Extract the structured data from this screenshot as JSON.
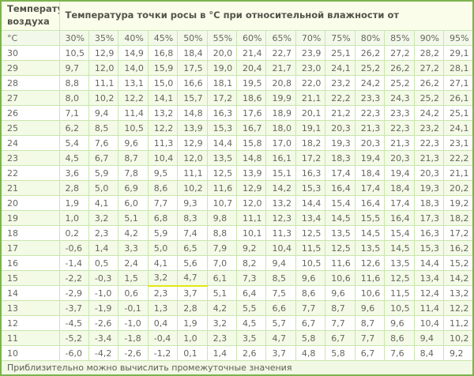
{
  "table": {
    "corner_header": "Температура воздуха",
    "main_header": "Температура точки росы в °C при относительной влажности от",
    "unit_header": "°C",
    "humidity_columns": [
      "30%",
      "35%",
      "40%",
      "45%",
      "50%",
      "55%",
      "60%",
      "65%",
      "70%",
      "75%",
      "80%",
      "85%",
      "90%",
      "95%"
    ],
    "rows": [
      {
        "temp": "30",
        "values": [
          "10,5",
          "12,9",
          "14,9",
          "16,8",
          "18,4",
          "20,0",
          "21,4",
          "22,7",
          "23,9",
          "25,1",
          "26,2",
          "27,2",
          "28,2",
          "29,1"
        ]
      },
      {
        "temp": "29",
        "values": [
          "9,7",
          "12,0",
          "14,0",
          "15,9",
          "17,5",
          "19,0",
          "20,4",
          "21,7",
          "23,0",
          "24,1",
          "25,2",
          "26,2",
          "27,2",
          "28,1"
        ]
      },
      {
        "temp": "28",
        "values": [
          "8,8",
          "11,1",
          "13,1",
          "15,0",
          "16,6",
          "18,1",
          "19,5",
          "20,8",
          "22,0",
          "23,2",
          "24,2",
          "25,2",
          "26,2",
          "27,1"
        ]
      },
      {
        "temp": "27",
        "values": [
          "8,0",
          "10,2",
          "12,2",
          "14,1",
          "15,7",
          "17,2",
          "18,6",
          "19,9",
          "21,1",
          "22,2",
          "23,3",
          "24,3",
          "25,2",
          "26,1"
        ]
      },
      {
        "temp": "26",
        "values": [
          "7,1",
          "9,4",
          "11,4",
          "13,2",
          "14,8",
          "16,3",
          "17,6",
          "18,9",
          "20,1",
          "21,2",
          "22,3",
          "23,3",
          "24,2",
          "25,1"
        ]
      },
      {
        "temp": "25",
        "values": [
          "6,2",
          "8,5",
          "10,5",
          "12,2",
          "13,9",
          "15,3",
          "16,7",
          "18,0",
          "19,1",
          "20,3",
          "21,3",
          "22,3",
          "23,2",
          "24,1"
        ]
      },
      {
        "temp": "24",
        "values": [
          "5,4",
          "7,6",
          "9,6",
          "11,3",
          "12,9",
          "14,4",
          "15,8",
          "17,0",
          "18,2",
          "19,3",
          "20,3",
          "21,3",
          "22,3",
          "23,1"
        ]
      },
      {
        "temp": "23",
        "values": [
          "4,5",
          "6,7",
          "8,7",
          "10,4",
          "12,0",
          "13,5",
          "14,8",
          "16,1",
          "17,2",
          "18,3",
          "19,4",
          "20,3",
          "21,3",
          "22,2"
        ]
      },
      {
        "temp": "22",
        "values": [
          "3,6",
          "5,9",
          "7,8",
          "9,5",
          "11,1",
          "12,5",
          "13,9",
          "15,1",
          "16,3",
          "17,4",
          "18,4",
          "19,4",
          "20,3",
          "21,1"
        ]
      },
      {
        "temp": "21",
        "values": [
          "2,8",
          "5,0",
          "6,9",
          "8,6",
          "10,2",
          "11,6",
          "12,9",
          "14,2",
          "15,3",
          "16,4",
          "17,4",
          "18,4",
          "19,3",
          "20,2"
        ]
      },
      {
        "temp": "20",
        "values": [
          "1,9",
          "4,1",
          "6,0",
          "7,7",
          "9,3",
          "10,7",
          "12,0",
          "13,2",
          "14,4",
          "15,4",
          "16,4",
          "17,4",
          "18,3",
          "19,2"
        ]
      },
      {
        "temp": "19",
        "values": [
          "1,0",
          "3,2",
          "5,1",
          "6,8",
          "8,3",
          "9,8",
          "11,1",
          "12,3",
          "13,4",
          "14,5",
          "15,5",
          "16,4",
          "17,3",
          "18,2"
        ]
      },
      {
        "temp": "18",
        "values": [
          "0,2",
          "2,3",
          "4,2",
          "5,9",
          "7,4",
          "8,8",
          "10,1",
          "11,3",
          "12,5",
          "13,5",
          "14,5",
          "15,4",
          "16,3",
          "17,2"
        ]
      },
      {
        "temp": "17",
        "values": [
          "-0,6",
          "1,4",
          "3,3",
          "5,0",
          "6,5",
          "7,9",
          "9,2",
          "10,4",
          "11,5",
          "12,5",
          "13,5",
          "14,5",
          "15,3",
          "16,2"
        ]
      },
      {
        "temp": "16",
        "values": [
          "-1,4",
          "0,5",
          "2,4",
          "4,1",
          "5,6",
          "7,0",
          "8,2",
          "9,4",
          "10,5",
          "11,6",
          "12,6",
          "13,5",
          "14,4",
          "15,2"
        ]
      },
      {
        "temp": "15",
        "values": [
          "-2,2",
          "-0,3",
          "1,5",
          "3,2",
          "4,7",
          "6,1",
          "7,3",
          "8,5",
          "9,6",
          "10,6",
          "11,6",
          "12,5",
          "13,4",
          "14,2"
        ]
      },
      {
        "temp": "14",
        "values": [
          "-2,9",
          "-1,0",
          "0,6",
          "2,3",
          "3,7",
          "5,1",
          "6,4",
          "7,5",
          "8,6",
          "9,6",
          "10,6",
          "11,5",
          "12,4",
          "13,2"
        ]
      },
      {
        "temp": "13",
        "values": [
          "-3,7",
          "-1,9",
          "-0,1",
          "1,3",
          "2,8",
          "4,2",
          "5,5",
          "6,6",
          "7,7",
          "8,7",
          "9,6",
          "10,5",
          "11,4",
          "12,2"
        ]
      },
      {
        "temp": "12",
        "values": [
          "-4,5",
          "-2,6",
          "-1,0",
          "0,4",
          "1,9",
          "3,2",
          "4,5",
          "5,7",
          "6,7",
          "7,7",
          "8,7",
          "9,6",
          "10,4",
          "11,2"
        ]
      },
      {
        "temp": "11",
        "values": [
          "-5,2",
          "-3,4",
          "-1,8",
          "-0,4",
          "1,0",
          "2,3",
          "3,5",
          "4,7",
          "5,8",
          "6,7",
          "7,7",
          "8,6",
          "9,4",
          "10,2"
        ]
      },
      {
        "temp": "10",
        "values": [
          "-6,0",
          "-4,2",
          "-2,6",
          "-1,2",
          "0,1",
          "1,4",
          "2,6",
          "3,7",
          "4,8",
          "5,8",
          "6,7",
          "7,6",
          "8,4",
          "9,2"
        ]
      }
    ],
    "highlight": {
      "temp": "15",
      "col_indices": [
        3,
        4
      ]
    },
    "footer": "Приблизительно можно вычислить промежуточные значения"
  },
  "colors": {
    "outer_border": "#7cb34d",
    "grid_line": "#c9e6ad",
    "header_bg": "#fbfdeb",
    "pct_row_bg": "#f3f9ea",
    "alt_row_bg": "#f3fae6",
    "footer_bg": "#f1f8e3",
    "text": "#67675e",
    "highlight_underline": "#e3e711"
  }
}
